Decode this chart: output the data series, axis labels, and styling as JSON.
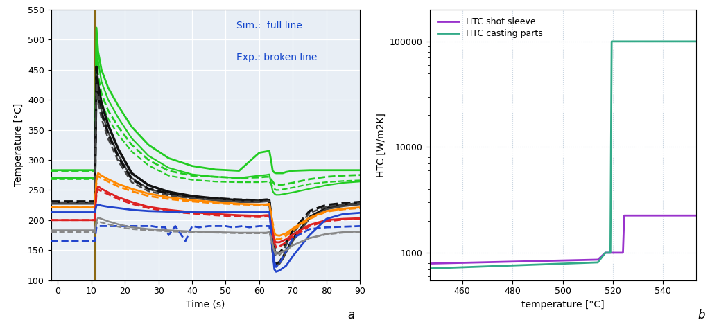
{
  "left": {
    "xlabel": "Time (s)",
    "ylabel": "Temperature [°C]",
    "xlim": [
      -2,
      90
    ],
    "ylim": [
      100,
      550
    ],
    "xticks": [
      0,
      10,
      20,
      30,
      40,
      50,
      60,
      70,
      80,
      90
    ],
    "yticks": [
      100,
      150,
      200,
      250,
      300,
      350,
      400,
      450,
      500,
      550
    ],
    "legend_text_sim": "Sim.:  full line",
    "legend_text_exp": "Exp.: broken line",
    "legend_color": "#1144cc",
    "bg_color": "#e8eef5",
    "grid_color": "#ffffff",
    "vline_x": 11.0,
    "vline_color": "#8B6914",
    "label_a": "a"
  },
  "right": {
    "xlabel": "temperature [°C]",
    "ylabel": "HTC [W/m2K]",
    "xlim": [
      447,
      553
    ],
    "xticks": [
      460,
      480,
      500,
      520,
      540
    ],
    "ylim_log": [
      550,
      200000
    ],
    "bg_color": "#ffffff",
    "grid_color": "#c8d4e0",
    "legend_shot_sleeve": "HTC shot sleeve",
    "legend_casting_parts": "HTC casting parts",
    "shot_sleeve_color": "#9933cc",
    "casting_parts_color": "#33aa88",
    "label_b": "b",
    "shot_sleeve_x": [
      447,
      514,
      517,
      524,
      524.5,
      553
    ],
    "shot_sleeve_y": [
      790,
      860,
      1000,
      1000,
      2250,
      2250
    ],
    "casting_parts_x": [
      447,
      514,
      517,
      519,
      519.5,
      553
    ],
    "casting_parts_y": [
      710,
      810,
      1000,
      1000,
      100000,
      100000
    ]
  },
  "curves": {
    "green_sim_1": {
      "color": "#22cc22",
      "lw": 2.0,
      "ls": "-",
      "x": [
        -2,
        0,
        10.9,
        11.0,
        11.5,
        12,
        13,
        15,
        18,
        22,
        27,
        33,
        40,
        47,
        54,
        60,
        62,
        63,
        63.5,
        64.0,
        64.5,
        65,
        66,
        67,
        68,
        70,
        75,
        80,
        85,
        90
      ],
      "y": [
        283,
        283,
        283,
        283,
        520,
        480,
        450,
        420,
        390,
        355,
        325,
        303,
        290,
        284,
        282,
        312,
        314,
        315,
        300,
        282,
        279,
        278,
        278,
        278,
        280,
        282,
        283,
        283,
        283,
        283
      ]
    },
    "green_sim_2": {
      "color": "#22cc22",
      "lw": 1.6,
      "ls": "-",
      "x": [
        -2,
        0,
        10.9,
        11.0,
        11.5,
        12,
        13,
        15,
        18,
        22,
        27,
        33,
        40,
        47,
        54,
        60,
        62,
        63,
        63.5,
        64.0,
        64.5,
        65,
        66,
        68,
        70,
        75,
        80,
        85,
        90
      ],
      "y": [
        270,
        270,
        270,
        270,
        505,
        465,
        430,
        400,
        370,
        336,
        307,
        287,
        276,
        272,
        270,
        274,
        275,
        276,
        262,
        248,
        244,
        242,
        242,
        244,
        246,
        252,
        258,
        262,
        264
      ]
    },
    "green_exp_1": {
      "color": "#22cc22",
      "lw": 2.0,
      "ls": "--",
      "x": [
        -2,
        0,
        10.9,
        11.0,
        11.5,
        12,
        13,
        15,
        18,
        22,
        27,
        33,
        40,
        47,
        54,
        60,
        62,
        63,
        64.5,
        65,
        66,
        68,
        70,
        75,
        80,
        85,
        90
      ],
      "y": [
        282,
        282,
        282,
        282,
        475,
        440,
        410,
        382,
        355,
        325,
        300,
        282,
        274,
        272,
        270,
        271,
        272,
        272,
        260,
        258,
        258,
        260,
        262,
        268,
        272,
        274,
        275
      ]
    },
    "green_exp_2": {
      "color": "#22cc22",
      "lw": 1.6,
      "ls": "--",
      "x": [
        -2,
        0,
        10.9,
        11.0,
        11.5,
        12,
        13,
        15,
        18,
        22,
        27,
        33,
        40,
        47,
        54,
        60,
        62,
        63,
        64.5,
        65,
        66,
        68,
        70,
        75,
        80,
        85,
        90
      ],
      "y": [
        268,
        268,
        268,
        268,
        465,
        427,
        396,
        368,
        342,
        314,
        291,
        274,
        267,
        264,
        263,
        263,
        264,
        264,
        252,
        250,
        250,
        252,
        254,
        260,
        263,
        265,
        266
      ]
    },
    "black_sim_1": {
      "color": "#111111",
      "lw": 2.5,
      "ls": "-",
      "x": [
        -2,
        0,
        10.9,
        11.0,
        11.5,
        12,
        13,
        15,
        18,
        22,
        27,
        33,
        40,
        47,
        54,
        60,
        62,
        63,
        63.5,
        64.0,
        64.5,
        65,
        66,
        67,
        68,
        70,
        75,
        80,
        85,
        90
      ],
      "y": [
        229,
        229,
        229,
        229,
        455,
        425,
        395,
        358,
        318,
        278,
        258,
        247,
        240,
        236,
        233,
        232,
        232,
        233,
        200,
        148,
        128,
        127,
        130,
        138,
        148,
        168,
        205,
        220,
        225,
        228
      ]
    },
    "black_sim_2": {
      "color": "#444444",
      "lw": 1.8,
      "ls": "-",
      "x": [
        -2,
        0,
        10.9,
        11.0,
        11.5,
        12,
        13,
        15,
        18,
        22,
        27,
        33,
        40,
        47,
        54,
        60,
        62,
        63,
        63.5,
        64.0,
        64.5,
        65,
        66,
        67,
        68,
        70,
        75,
        80,
        85,
        90
      ],
      "y": [
        227,
        227,
        227,
        227,
        442,
        412,
        382,
        346,
        308,
        270,
        252,
        243,
        237,
        233,
        230,
        230,
        231,
        231,
        198,
        144,
        124,
        124,
        127,
        135,
        146,
        165,
        203,
        218,
        223,
        226
      ]
    },
    "black_exp_1": {
      "color": "#111111",
      "lw": 2.5,
      "ls": "--",
      "x": [
        -2,
        0,
        10.9,
        11.0,
        11.5,
        12,
        13,
        15,
        18,
        22,
        27,
        33,
        40,
        47,
        54,
        60,
        62,
        63,
        64.5,
        65,
        66,
        67,
        68,
        70,
        75,
        80,
        85,
        90
      ],
      "y": [
        231,
        231,
        231,
        231,
        438,
        408,
        378,
        343,
        305,
        268,
        252,
        244,
        239,
        236,
        234,
        233,
        234,
        234,
        158,
        145,
        145,
        152,
        163,
        182,
        215,
        225,
        228,
        230
      ]
    },
    "black_exp_2": {
      "color": "#444444",
      "lw": 1.8,
      "ls": "--",
      "x": [
        -2,
        0,
        10.9,
        11.0,
        11.5,
        12,
        13,
        15,
        18,
        22,
        27,
        33,
        40,
        47,
        54,
        60,
        62,
        63,
        64.5,
        65,
        66,
        67,
        68,
        70,
        75,
        80,
        85,
        90
      ],
      "y": [
        229,
        229,
        229,
        229,
        428,
        398,
        369,
        335,
        298,
        263,
        248,
        241,
        236,
        233,
        231,
        231,
        231,
        232,
        155,
        142,
        142,
        148,
        158,
        178,
        212,
        222,
        226,
        228
      ]
    },
    "orange_sim": {
      "color": "#ff8800",
      "lw": 2.0,
      "ls": "-",
      "x": [
        -2,
        0,
        10.9,
        11.0,
        11.5,
        12,
        13,
        15,
        18,
        22,
        27,
        33,
        40,
        47,
        54,
        60,
        62,
        63,
        63.5,
        64.0,
        64.5,
        65,
        66,
        68,
        70,
        75,
        80,
        85,
        90
      ],
      "y": [
        221,
        221,
        221,
        221,
        268,
        278,
        274,
        268,
        260,
        252,
        244,
        238,
        233,
        230,
        227,
        226,
        226,
        227,
        212,
        190,
        178,
        175,
        174,
        178,
        186,
        204,
        215,
        219,
        221
      ]
    },
    "orange_exp": {
      "color": "#ff8800",
      "lw": 2.0,
      "ls": "--",
      "x": [
        -2,
        0,
        10.9,
        11.0,
        11.5,
        12,
        13,
        15,
        18,
        22,
        27,
        33,
        40,
        47,
        54,
        60,
        62,
        63,
        64.5,
        65,
        66,
        68,
        70,
        75,
        80,
        85,
        90
      ],
      "y": [
        221,
        221,
        221,
        221,
        264,
        273,
        270,
        264,
        256,
        248,
        240,
        235,
        231,
        228,
        226,
        225,
        225,
        226,
        180,
        168,
        168,
        174,
        183,
        202,
        214,
        218,
        220
      ]
    },
    "red_sim": {
      "color": "#dd2222",
      "lw": 2.0,
      "ls": "-",
      "x": [
        -2,
        0,
        10.9,
        11.0,
        11.5,
        12,
        13,
        15,
        18,
        22,
        27,
        33,
        40,
        47,
        54,
        60,
        62,
        63,
        63.5,
        64.0,
        64.5,
        65,
        66,
        68,
        70,
        75,
        80,
        85,
        90
      ],
      "y": [
        200,
        200,
        200,
        200,
        248,
        256,
        252,
        246,
        238,
        230,
        222,
        217,
        213,
        210,
        208,
        207,
        208,
        208,
        196,
        178,
        166,
        163,
        163,
        168,
        176,
        192,
        200,
        202,
        203
      ]
    },
    "red_exp": {
      "color": "#dd2222",
      "lw": 2.0,
      "ls": "--",
      "x": [
        -2,
        0,
        10.9,
        11.0,
        11.5,
        12,
        13,
        15,
        18,
        22,
        27,
        33,
        40,
        47,
        54,
        60,
        62,
        63,
        64.5,
        65,
        66,
        68,
        70,
        75,
        80,
        85,
        90
      ],
      "y": [
        200,
        200,
        200,
        200,
        243,
        251,
        248,
        243,
        235,
        227,
        220,
        214,
        211,
        208,
        206,
        205,
        206,
        207,
        162,
        155,
        156,
        163,
        172,
        190,
        198,
        201,
        202
      ]
    },
    "blue_sim": {
      "color": "#2244cc",
      "lw": 2.0,
      "ls": "-",
      "x": [
        -2,
        0,
        10.9,
        11.0,
        11.5,
        12,
        13,
        15,
        18,
        22,
        27,
        33,
        40,
        47,
        54,
        60,
        62,
        63,
        63.5,
        64.0,
        64.5,
        65,
        66,
        68,
        70,
        75,
        80,
        85,
        90
      ],
      "y": [
        213,
        213,
        213,
        213,
        224,
        226,
        224,
        222,
        220,
        217,
        215,
        214,
        213,
        213,
        213,
        213,
        213,
        214,
        185,
        148,
        118,
        114,
        116,
        124,
        140,
        175,
        202,
        210,
        212
      ]
    },
    "blue_exp": {
      "color": "#2244cc",
      "lw": 2.0,
      "ls": "--",
      "x": [
        -2,
        0,
        9.9,
        10.0,
        10.9,
        11.0,
        11.5,
        12,
        13,
        15,
        18,
        22,
        25,
        28,
        30,
        32,
        33,
        35,
        38,
        40,
        42,
        45,
        47,
        50,
        52,
        55,
        57,
        60,
        62,
        63,
        64.5,
        65,
        66,
        68,
        70,
        75,
        80,
        85,
        90
      ],
      "y": [
        165,
        165,
        165,
        165,
        165,
        165,
        188,
        190,
        190,
        190,
        190,
        190,
        190,
        190,
        188,
        188,
        175,
        190,
        165,
        190,
        188,
        190,
        190,
        190,
        188,
        190,
        188,
        190,
        190,
        190,
        130,
        122,
        128,
        148,
        170,
        185,
        188,
        189,
        190
      ]
    },
    "gray_sim": {
      "color": "#888888",
      "lw": 1.8,
      "ls": "-",
      "x": [
        -2,
        0,
        10.9,
        11.0,
        11.5,
        12,
        13,
        15,
        18,
        22,
        27,
        33,
        40,
        47,
        54,
        60,
        62,
        63,
        63.5,
        64.0,
        64.5,
        65,
        66,
        68,
        70,
        75,
        80,
        85,
        90
      ],
      "y": [
        183,
        183,
        183,
        183,
        198,
        204,
        202,
        198,
        193,
        188,
        185,
        183,
        181,
        180,
        179,
        179,
        179,
        180,
        172,
        158,
        148,
        145,
        145,
        150,
        158,
        170,
        177,
        180,
        181
      ]
    },
    "gray_exp": {
      "color": "#888888",
      "lw": 1.6,
      "ls": "--",
      "x": [
        -2,
        0,
        10.9,
        11.0,
        11.5,
        12,
        13,
        15,
        18,
        22,
        27,
        33,
        40,
        47,
        54,
        60,
        62,
        63,
        64.5,
        65,
        66,
        68,
        70,
        75,
        80,
        85,
        90
      ],
      "y": [
        180,
        180,
        180,
        180,
        193,
        198,
        196,
        193,
        189,
        185,
        183,
        181,
        180,
        179,
        178,
        178,
        178,
        179,
        148,
        142,
        143,
        150,
        158,
        170,
        176,
        179,
        180
      ]
    }
  }
}
